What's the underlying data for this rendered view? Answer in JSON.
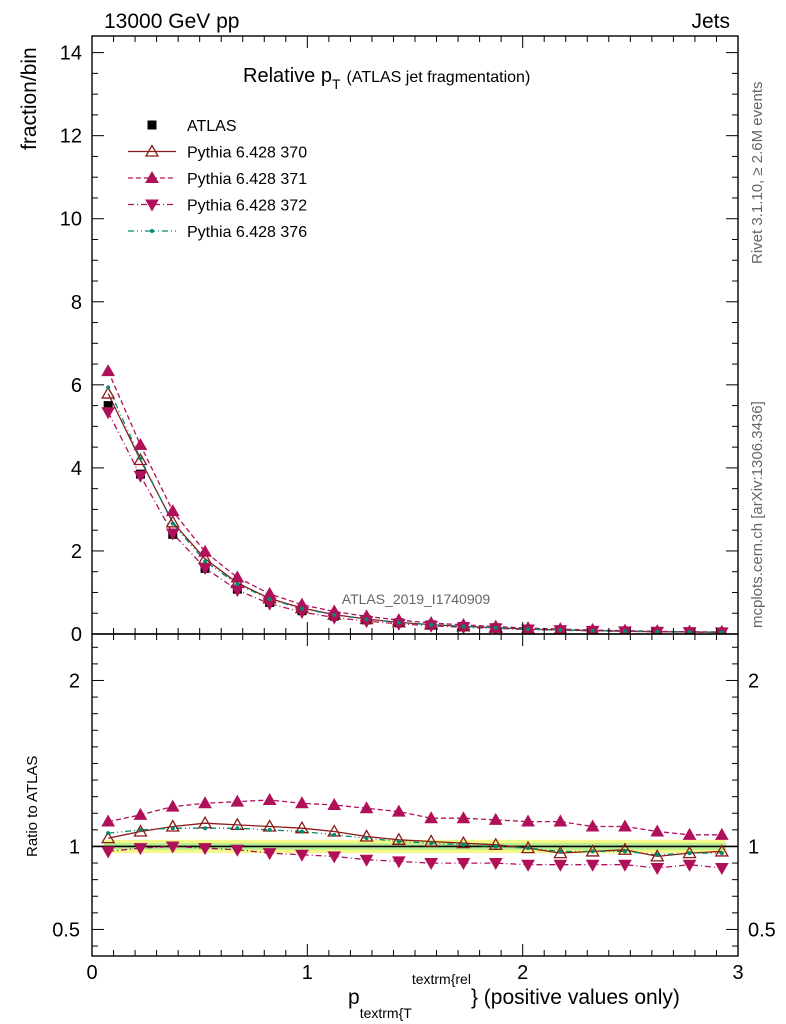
{
  "header": {
    "left": "13000 GeV pp",
    "right": "Jets"
  },
  "side_labels": {
    "top": "Rivet 3.1.10, ≥ 2.6M events",
    "bottom": "mcplots.cern.ch [arXiv:1306.3436]"
  },
  "watermark": "ATLAS_2019_I1740909",
  "chart_data": {
    "type": "scatter",
    "title_main": "Relative p",
    "title_sub": "T",
    "title_rest": "(ATLAS jet fragmentation)",
    "xlabel_main": "p",
    "xlabel_sub": "textrm{T",
    "xlabel_sup": "textrm{rel",
    "xlabel_rest": "} (positive values only)",
    "ylabel": "fraction/bin",
    "ratio_ylabel": "Ratio to ATLAS",
    "xlim": [
      0,
      3
    ],
    "ylim": [
      0,
      14.4
    ],
    "ratio_ylim": [
      0.34,
      2.28
    ],
    "x_ticks": [
      0,
      1,
      2,
      3
    ],
    "x_tick_labels": [
      "0",
      "1",
      "2",
      "3"
    ],
    "y_ticks": [
      0,
      2,
      4,
      6,
      8,
      10,
      12,
      14
    ],
    "y_tick_labels": [
      "0",
      "2",
      "4",
      "6",
      "8",
      "10",
      "12",
      "14"
    ],
    "ratio_ticks": [
      0.5,
      1,
      2
    ],
    "ratio_tick_labels": [
      "0.5",
      "1",
      "2"
    ],
    "x": [
      0.075,
      0.225,
      0.375,
      0.525,
      0.675,
      0.825,
      0.975,
      1.125,
      1.275,
      1.425,
      1.575,
      1.725,
      1.875,
      2.025,
      2.175,
      2.325,
      2.475,
      2.625,
      2.775,
      2.925
    ],
    "reference": {
      "name": "ATLAS",
      "values": [
        5.5,
        3.85,
        2.4,
        1.58,
        1.08,
        0.76,
        0.56,
        0.43,
        0.34,
        0.27,
        0.22,
        0.18,
        0.15,
        0.12,
        0.1,
        0.085,
        0.07,
        0.06,
        0.05,
        0.045
      ],
      "band_outer": 0.04,
      "band_inner": 0.02
    },
    "series": [
      {
        "name": "Pythia 6.428 370",
        "color": "#8b1a1a",
        "marker": "triangle-up-open",
        "line": "solid",
        "values": [
          5.79,
          4.19,
          2.69,
          1.81,
          1.23,
          0.855,
          0.625,
          0.468,
          0.36,
          0.28,
          0.226,
          0.183,
          0.152,
          0.119,
          0.096,
          0.082,
          0.068,
          0.056,
          0.048,
          0.043
        ],
        "ratio": [
          1.05,
          1.09,
          1.12,
          1.14,
          1.13,
          1.12,
          1.11,
          1.09,
          1.06,
          1.04,
          1.03,
          1.02,
          1.01,
          0.99,
          0.96,
          0.97,
          0.98,
          0.94,
          0.96,
          0.97
        ]
      },
      {
        "name": "Pythia 6.428 371",
        "color": "#b0105a",
        "marker": "triangle-up",
        "line": "dashed",
        "values": [
          6.33,
          4.55,
          2.96,
          1.98,
          1.36,
          0.967,
          0.706,
          0.542,
          0.425,
          0.335,
          0.266,
          0.218,
          0.177,
          0.142,
          0.118,
          0.096,
          0.079,
          0.066,
          0.053,
          0.048
        ],
        "ratio": [
          1.15,
          1.19,
          1.24,
          1.26,
          1.27,
          1.28,
          1.26,
          1.25,
          1.23,
          1.21,
          1.17,
          1.17,
          1.16,
          1.15,
          1.15,
          1.12,
          1.12,
          1.09,
          1.07,
          1.07
        ]
      },
      {
        "name": "Pythia 6.428 372",
        "color": "#b0105a",
        "marker": "triangle-down",
        "line": "dashdot",
        "values": [
          5.34,
          3.81,
          2.42,
          1.59,
          1.06,
          0.73,
          0.53,
          0.396,
          0.31,
          0.245,
          0.198,
          0.162,
          0.136,
          0.107,
          0.089,
          0.076,
          0.063,
          0.053,
          0.045,
          0.04
        ],
        "ratio": [
          0.97,
          0.99,
          1.0,
          0.99,
          0.98,
          0.96,
          0.95,
          0.94,
          0.92,
          0.91,
          0.9,
          0.9,
          0.9,
          0.89,
          0.89,
          0.89,
          0.89,
          0.87,
          0.89,
          0.87
        ]
      },
      {
        "name": "Pythia 6.428 376",
        "color": "#008b6b",
        "marker": "dot",
        "line": "dashdotdot",
        "values": [
          5.94,
          4.23,
          2.66,
          1.75,
          1.2,
          0.84,
          0.61,
          0.46,
          0.355,
          0.278,
          0.224,
          0.182,
          0.151,
          0.118,
          0.097,
          0.082,
          0.068,
          0.057,
          0.048,
          0.043
        ],
        "ratio": [
          1.08,
          1.1,
          1.11,
          1.11,
          1.11,
          1.1,
          1.09,
          1.07,
          1.05,
          1.03,
          1.02,
          1.01,
          1.0,
          0.99,
          0.97,
          0.97,
          0.97,
          0.95,
          0.96,
          0.96
        ]
      }
    ]
  }
}
